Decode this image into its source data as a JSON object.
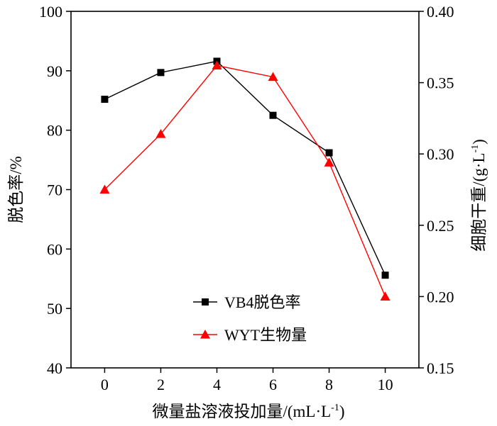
{
  "chart_data": {
    "type": "line",
    "x": [
      0,
      2,
      4,
      6,
      8,
      10
    ],
    "xlabel": "微量盐溶液投加量/(mL·L",
    "xlabel_sup": "-1",
    "xlabel_tail": ")",
    "ylabel_left": "脱色率/%",
    "ylabel_right": "细胞干重/(g·L",
    "ylabel_right_sup": "-1",
    "ylabel_right_tail": ")",
    "xlim": [
      -1.2,
      11.2
    ],
    "xticks": [
      0,
      2,
      4,
      6,
      8,
      10
    ],
    "xtick_labels": [
      "0",
      "2",
      "4",
      "6",
      "8",
      "10"
    ],
    "ylim_left": [
      40,
      100
    ],
    "yticks_left": [
      40,
      50,
      60,
      70,
      80,
      90,
      100
    ],
    "ytick_labels_left": [
      "40",
      "50",
      "60",
      "70",
      "80",
      "90",
      "100"
    ],
    "ylim_right": [
      0.15,
      0.4
    ],
    "yticks_right": [
      0.15,
      0.2,
      0.25,
      0.3,
      0.35,
      0.4
    ],
    "ytick_labels_right": [
      "0.15",
      "0.20",
      "0.25",
      "0.30",
      "0.35",
      "0.40"
    ],
    "grid": false,
    "legend_position": "bottom-center",
    "series": [
      {
        "name": "VB4脱色率",
        "axis": "left",
        "color": "#000000",
        "marker": "square",
        "values": [
          85.2,
          89.7,
          91.6,
          82.5,
          76.2,
          55.6
        ]
      },
      {
        "name": "WYT生物量",
        "axis": "right",
        "color": "#ff0000",
        "marker": "triangle",
        "values": [
          0.275,
          0.314,
          0.362,
          0.354,
          0.294,
          0.2
        ]
      }
    ]
  }
}
